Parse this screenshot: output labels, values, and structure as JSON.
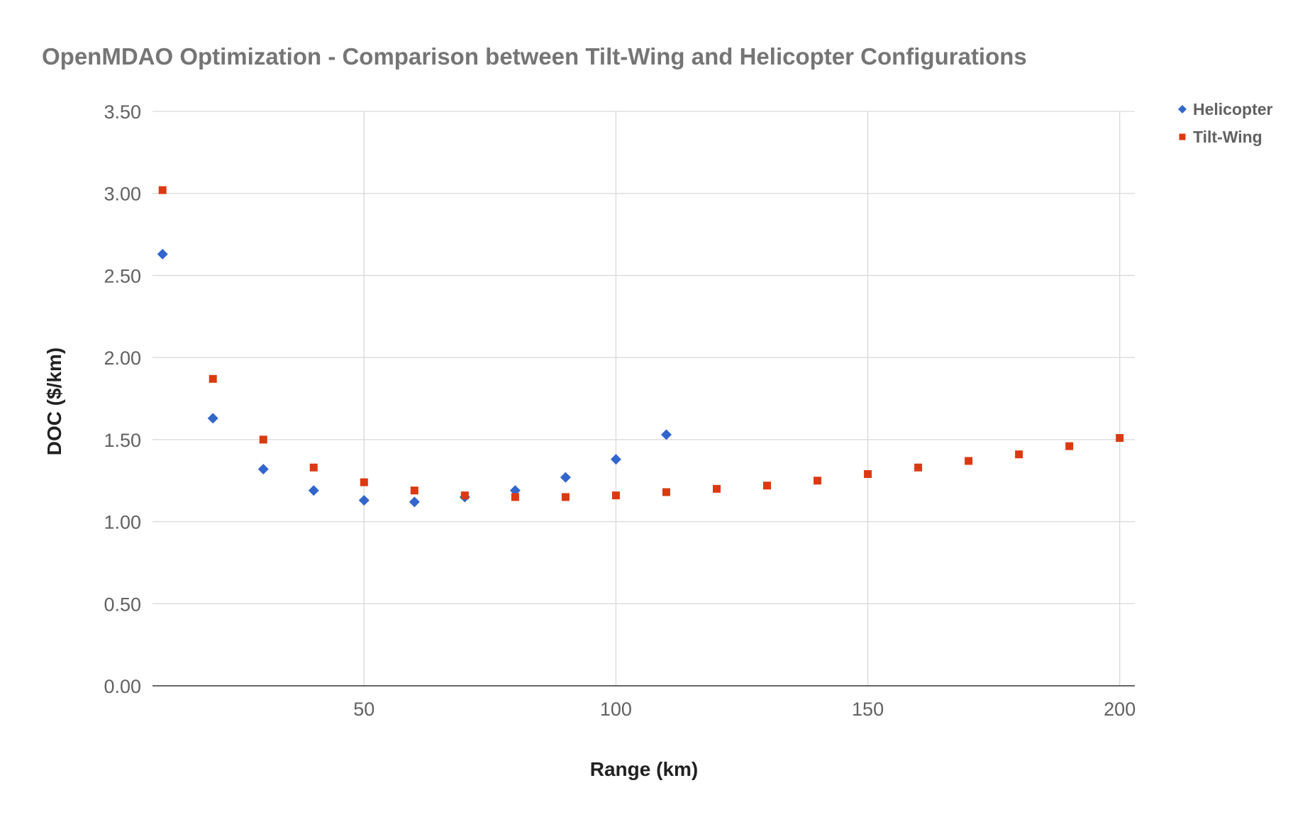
{
  "chart_data": {
    "type": "scatter",
    "title": "OpenMDAO Optimization - Comparison between Tilt-Wing and Helicopter Configurations",
    "xlabel": "Range (km)",
    "ylabel": "DOC ($/km)",
    "xlim": [
      8,
      203
    ],
    "ylim": [
      0,
      3.5
    ],
    "x_ticks": [
      "50",
      "100",
      "150",
      "200"
    ],
    "x_tick_values": [
      50,
      100,
      150,
      200
    ],
    "y_ticks": [
      "0.00",
      "0.50",
      "1.00",
      "1.50",
      "2.00",
      "2.50",
      "3.00",
      "3.50"
    ],
    "y_tick_values": [
      0,
      0.5,
      1,
      1.5,
      2,
      2.5,
      3,
      3.5
    ],
    "grid": true,
    "legend_position": "right",
    "series": [
      {
        "name": "Helicopter",
        "marker": "diamond",
        "color": "#3366cc",
        "points": [
          {
            "x": 10,
            "y": 2.63
          },
          {
            "x": 20,
            "y": 1.63
          },
          {
            "x": 30,
            "y": 1.32
          },
          {
            "x": 40,
            "y": 1.19
          },
          {
            "x": 50,
            "y": 1.13
          },
          {
            "x": 60,
            "y": 1.12
          },
          {
            "x": 70,
            "y": 1.15
          },
          {
            "x": 80,
            "y": 1.19
          },
          {
            "x": 90,
            "y": 1.27
          },
          {
            "x": 100,
            "y": 1.38
          },
          {
            "x": 110,
            "y": 1.53
          }
        ]
      },
      {
        "name": "Tilt-Wing",
        "marker": "square",
        "color": "#dc3912",
        "points": [
          {
            "x": 10,
            "y": 3.02
          },
          {
            "x": 20,
            "y": 1.87
          },
          {
            "x": 30,
            "y": 1.5
          },
          {
            "x": 40,
            "y": 1.33
          },
          {
            "x": 50,
            "y": 1.24
          },
          {
            "x": 60,
            "y": 1.19
          },
          {
            "x": 70,
            "y": 1.16
          },
          {
            "x": 80,
            "y": 1.15
          },
          {
            "x": 90,
            "y": 1.15
          },
          {
            "x": 100,
            "y": 1.16
          },
          {
            "x": 110,
            "y": 1.18
          },
          {
            "x": 120,
            "y": 1.2
          },
          {
            "x": 130,
            "y": 1.22
          },
          {
            "x": 140,
            "y": 1.25
          },
          {
            "x": 150,
            "y": 1.29
          },
          {
            "x": 160,
            "y": 1.33
          },
          {
            "x": 170,
            "y": 1.37
          },
          {
            "x": 180,
            "y": 1.41
          },
          {
            "x": 190,
            "y": 1.46
          },
          {
            "x": 200,
            "y": 1.51
          }
        ]
      }
    ]
  }
}
